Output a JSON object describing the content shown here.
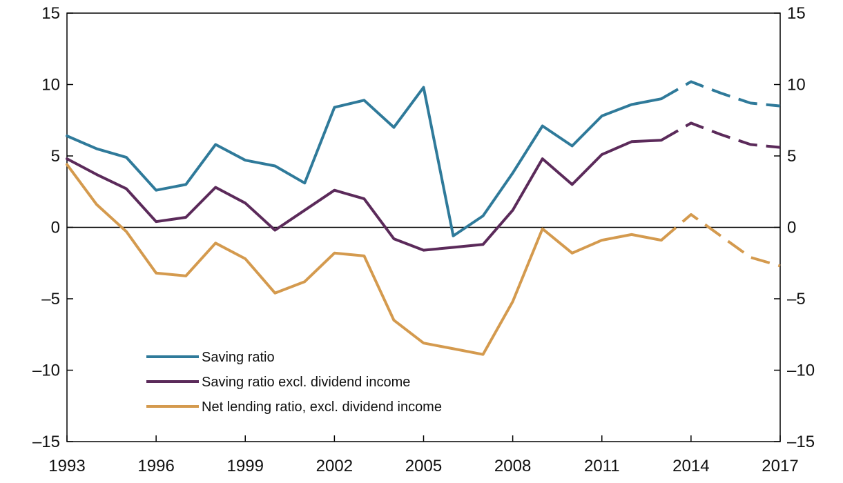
{
  "chart_data": {
    "type": "line",
    "x_ticks": [
      "1993",
      "1996",
      "1999",
      "2002",
      "2005",
      "2008",
      "2011",
      "2014",
      "2017"
    ],
    "y_ticks": [
      "15",
      "10",
      "5",
      "0",
      "–5",
      "–10",
      "–15"
    ],
    "ylim": [
      -15,
      15
    ],
    "xlim": [
      1993,
      2017
    ],
    "projection_from": 2013,
    "grid": false,
    "zero_line": true,
    "legend_position": "bottom-left",
    "series": [
      {
        "name": "Saving ratio",
        "color": "#2f7a9a",
        "x": [
          1993,
          1994,
          1995,
          1996,
          1997,
          1998,
          1999,
          2000,
          2001,
          2002,
          2003,
          2004,
          2005,
          2006,
          2007,
          2008,
          2009,
          2010,
          2011,
          2012,
          2013,
          2014,
          2015,
          2016,
          2017
        ],
        "values": [
          6.4,
          5.5,
          4.9,
          2.6,
          3.0,
          5.8,
          4.7,
          4.3,
          3.1,
          8.4,
          8.9,
          7.0,
          9.8,
          -0.6,
          0.8,
          3.8,
          7.1,
          5.7,
          7.8,
          8.6,
          9.0,
          10.2,
          9.4,
          8.7,
          8.5
        ]
      },
      {
        "name": "Saving ratio excl. dividend income",
        "color": "#5b2a5a",
        "x": [
          1993,
          1994,
          1995,
          1996,
          1997,
          1998,
          1999,
          2000,
          2001,
          2002,
          2003,
          2004,
          2005,
          2006,
          2007,
          2008,
          2009,
          2010,
          2011,
          2012,
          2013,
          2014,
          2015,
          2016,
          2017
        ],
        "values": [
          4.8,
          3.7,
          2.7,
          0.4,
          0.7,
          2.8,
          1.7,
          -0.2,
          1.2,
          2.6,
          2.0,
          -0.8,
          -1.6,
          -1.4,
          -1.2,
          1.2,
          4.8,
          3.0,
          5.1,
          6.0,
          6.1,
          7.3,
          6.5,
          5.8,
          5.6
        ]
      },
      {
        "name": "Net lending ratio, excl. dividend income",
        "color": "#d49a4e",
        "x": [
          1993,
          1994,
          1995,
          1996,
          1997,
          1998,
          1999,
          2000,
          2001,
          2002,
          2003,
          2004,
          2005,
          2006,
          2007,
          2008,
          2009,
          2010,
          2011,
          2012,
          2013,
          2014,
          2015,
          2016,
          2017
        ],
        "values": [
          4.4,
          1.6,
          -0.3,
          -3.2,
          -3.4,
          -1.1,
          -2.2,
          -4.6,
          -3.8,
          -1.8,
          -2.0,
          -6.5,
          -8.1,
          -8.5,
          -8.9,
          -5.2,
          -0.1,
          -1.8,
          -0.9,
          -0.5,
          -0.9,
          0.9,
          -0.6,
          -2.1,
          -2.7
        ]
      }
    ]
  }
}
